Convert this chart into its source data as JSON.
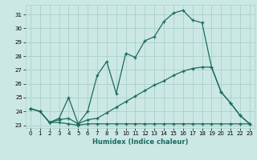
{
  "xlabel": "Humidex (Indice chaleur)",
  "background_color": "#cce8e4",
  "grid_color": "#aacfcb",
  "line_color": "#1a6b60",
  "xlim": [
    -0.5,
    23.5
  ],
  "ylim": [
    22.8,
    31.7
  ],
  "yticks": [
    23,
    24,
    25,
    26,
    27,
    28,
    29,
    30,
    31
  ],
  "xticks": [
    0,
    1,
    2,
    3,
    4,
    5,
    6,
    7,
    8,
    9,
    10,
    11,
    12,
    13,
    14,
    15,
    16,
    17,
    18,
    19,
    20,
    21,
    22,
    23
  ],
  "curve1_x": [
    0,
    1,
    2,
    3,
    4,
    5,
    6,
    7,
    8,
    9,
    10,
    11,
    12,
    13,
    14,
    15,
    16,
    17,
    18,
    19,
    20,
    21,
    22,
    23
  ],
  "curve1_y": [
    24.2,
    24.0,
    23.2,
    23.5,
    25.0,
    23.1,
    24.0,
    26.6,
    27.6,
    25.3,
    28.2,
    27.9,
    29.1,
    29.4,
    30.5,
    31.1,
    31.3,
    30.6,
    30.4,
    27.2,
    25.4,
    24.6,
    23.7,
    23.1
  ],
  "curve2_x": [
    0,
    1,
    2,
    3,
    4,
    5,
    6,
    7,
    8,
    9,
    10,
    11,
    12,
    13,
    14,
    15,
    16,
    17,
    18,
    19,
    20,
    21,
    22,
    23
  ],
  "curve2_y": [
    24.2,
    24.0,
    23.2,
    23.4,
    23.5,
    23.1,
    23.4,
    23.5,
    23.9,
    24.3,
    24.7,
    25.1,
    25.5,
    25.9,
    26.2,
    26.6,
    26.9,
    27.1,
    27.2,
    27.2,
    25.4,
    24.6,
    23.7,
    23.1
  ],
  "curve3_x": [
    0,
    1,
    2,
    3,
    4,
    5,
    6,
    7,
    8,
    9,
    10,
    11,
    12,
    13,
    14,
    15,
    16,
    17,
    18,
    19,
    20,
    21,
    22,
    23
  ],
  "curve3_y": [
    24.2,
    24.0,
    23.2,
    23.2,
    23.1,
    23.0,
    23.1,
    23.1,
    23.1,
    23.1,
    23.1,
    23.1,
    23.1,
    23.1,
    23.1,
    23.1,
    23.1,
    23.1,
    23.1,
    23.1,
    23.1,
    23.1,
    23.1,
    23.1
  ]
}
